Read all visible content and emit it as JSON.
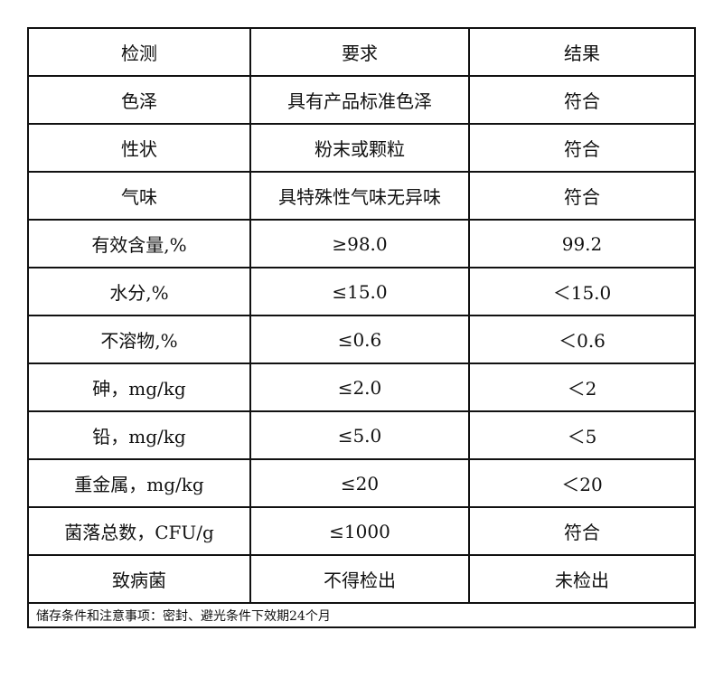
{
  "headers": [
    "检测",
    "要求",
    "结果"
  ],
  "rows": [
    [
      "色泽",
      "具有产品标准色泽",
      "符合"
    ],
    [
      "性状",
      "粉末或颗粒",
      "符合"
    ],
    [
      "气味",
      "具特殊性气味无异味",
      "符合"
    ],
    [
      "有效含量,%",
      "≥98.0",
      "99.2"
    ],
    [
      "水分,%",
      "≤15.0",
      "＜15.0"
    ],
    [
      "不溶物,%",
      "≤0.6",
      "＜0.6"
    ],
    [
      "砷，mg/kg",
      "≤2.0",
      "＜2"
    ],
    [
      "铅，mg/kg",
      "≤5.0",
      "＜5"
    ],
    [
      "重金属，mg/kg",
      "≤20",
      "＜20"
    ],
    [
      "菌落总数，CFU/g",
      "≤1000",
      "符合"
    ],
    [
      "致病菌",
      "不得检出",
      "未检出"
    ]
  ],
  "note": "储存条件和注意事项：密封、避光条件下效期24个月"
}
